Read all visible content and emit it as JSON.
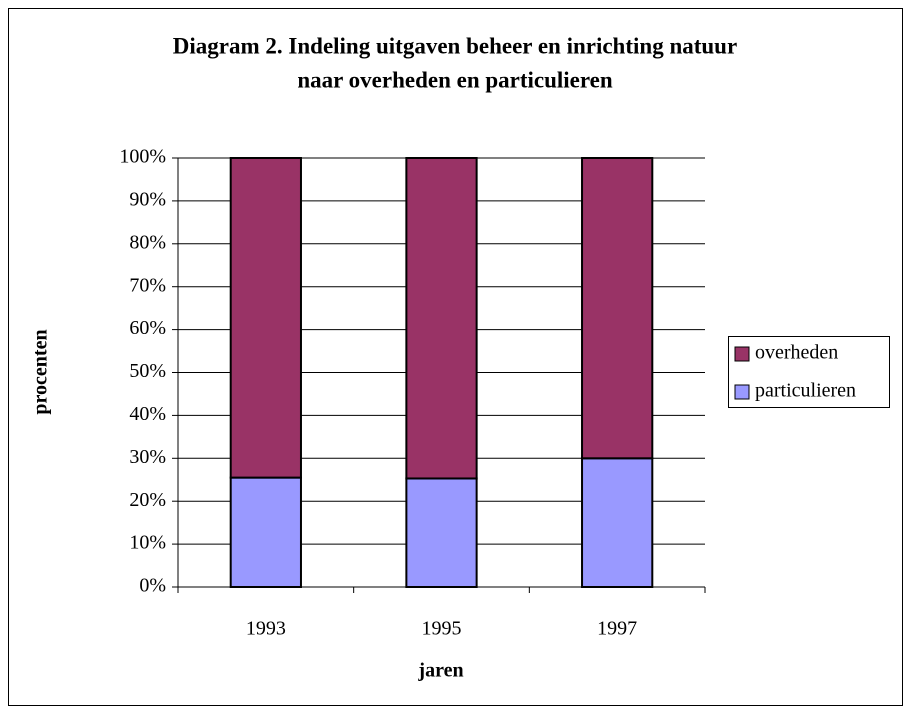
{
  "chart_data": {
    "type": "stacked_bar",
    "title": [
      "Diagram 2. Indeling uitgaven beheer en inrichting natuur",
      "naar overheden en particulieren"
    ],
    "x_label": "jaren",
    "y_label": "procenten",
    "categories": [
      "1993",
      "1995",
      "1997"
    ],
    "series": [
      {
        "name": "particulieren",
        "color": "#9999ff",
        "values": [
          25.5,
          25.3,
          30
        ]
      },
      {
        "name": "overheden",
        "color": "#993366",
        "values": [
          74.5,
          74.7,
          70
        ]
      }
    ],
    "ylim": [
      0,
      100
    ],
    "yticks": [
      {
        "value": 0,
        "label": "0%"
      },
      {
        "value": 10,
        "label": "10%"
      },
      {
        "value": 20,
        "label": "20%"
      },
      {
        "value": 30,
        "label": "30%"
      },
      {
        "value": 40,
        "label": "40%"
      },
      {
        "value": 50,
        "label": "50%"
      },
      {
        "value": 60,
        "label": "60%"
      },
      {
        "value": 70,
        "label": "70%"
      },
      {
        "value": 80,
        "label": "80%"
      },
      {
        "value": 90,
        "label": "90%"
      },
      {
        "value": 100,
        "label": "100%"
      }
    ],
    "grid": true,
    "legend": "right"
  }
}
